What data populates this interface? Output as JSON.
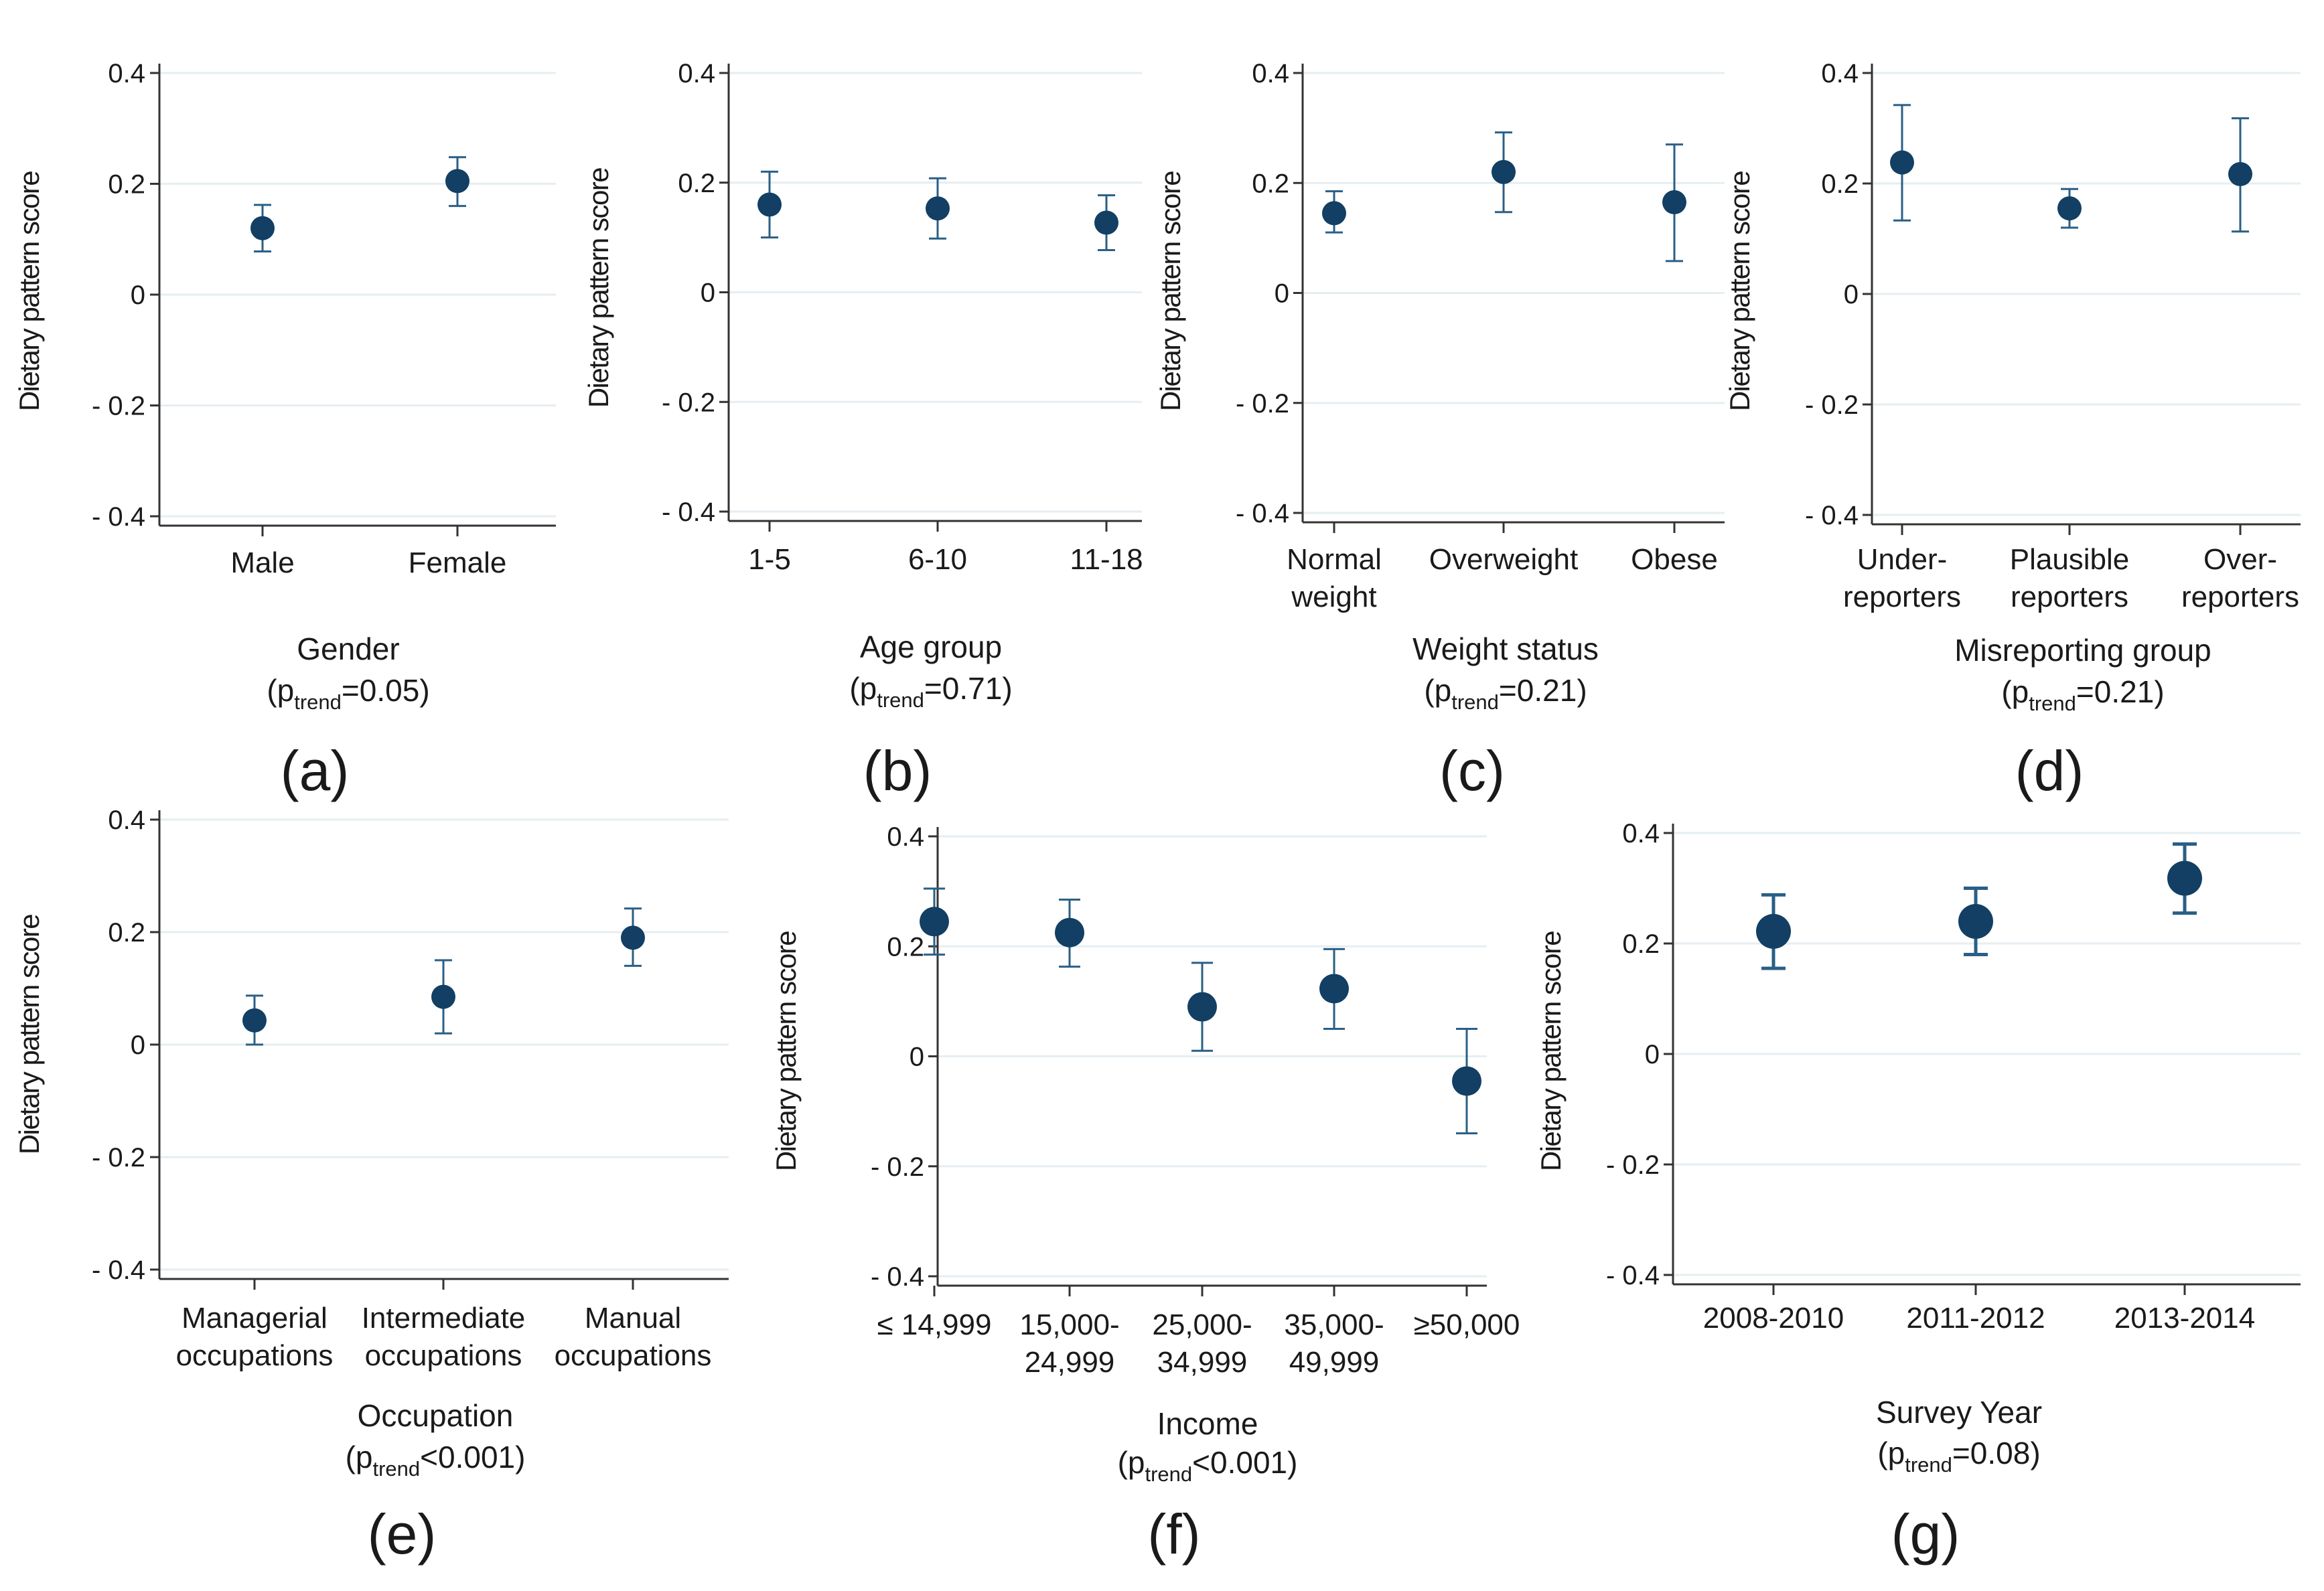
{
  "style": {
    "marker_color": "#123f63",
    "errorbar_color": "#2a5f86",
    "grid_color": "#e6eef2",
    "axis_color": "#333333"
  },
  "chart_data": [
    {
      "id": "a",
      "type": "scatter",
      "panel_label": "(a)",
      "ylabel": "Dietary pattern score",
      "xlabel": "Gender",
      "p_prefix": "(p",
      "p_sub": "trend",
      "p_value": "=0.05)",
      "yticks": [
        {
          "value": 0.4,
          "label": "0.4"
        },
        {
          "value": 0.2,
          "label": "0.2"
        },
        {
          "value": 0,
          "label": "0"
        },
        {
          "value": -0.2,
          "label": "- 0.2"
        },
        {
          "value": -0.4,
          "label": "- 0.4"
        }
      ],
      "ylim": [
        -0.42,
        0.42
      ],
      "categories": [
        [
          "Male"
        ],
        [
          "Female"
        ]
      ],
      "values": [
        0.12,
        0.205
      ],
      "ci_low": [
        0.078,
        0.16
      ],
      "ci_high": [
        0.162,
        0.248
      ]
    },
    {
      "id": "b",
      "type": "scatter",
      "panel_label": "(b)",
      "ylabel": "Dietary pattern score",
      "xlabel": "Age group",
      "p_prefix": "(p",
      "p_sub": "trend",
      "p_value": "=0.71)",
      "yticks": [
        {
          "value": 0.4,
          "label": "0.4"
        },
        {
          "value": 0.2,
          "label": "0.2"
        },
        {
          "value": 0,
          "label": "0"
        },
        {
          "value": -0.2,
          "label": "- 0.2"
        },
        {
          "value": -0.4,
          "label": "- 0.4"
        }
      ],
      "ylim": [
        -0.42,
        0.42
      ],
      "categories": [
        [
          "1-5"
        ],
        [
          "6-10"
        ],
        [
          "11-18"
        ]
      ],
      "values": [
        0.16,
        0.153,
        0.127
      ],
      "ci_low": [
        0.1,
        0.098,
        0.077
      ],
      "ci_high": [
        0.22,
        0.208,
        0.177
      ]
    },
    {
      "id": "c",
      "type": "scatter",
      "panel_label": "(c)",
      "ylabel": "Dietary pattern score",
      "xlabel": "Weight status",
      "p_prefix": "(p",
      "p_sub": "trend",
      "p_value": "=0.21)",
      "yticks": [
        {
          "value": 0.4,
          "label": "0.4"
        },
        {
          "value": 0.2,
          "label": "0.2"
        },
        {
          "value": 0,
          "label": "0"
        },
        {
          "value": -0.2,
          "label": "- 0.2"
        },
        {
          "value": -0.4,
          "label": "- 0.4"
        }
      ],
      "ylim": [
        -0.42,
        0.42
      ],
      "categories": [
        [
          "Normal",
          "weight"
        ],
        [
          "Overweight"
        ],
        [
          "Obese"
        ]
      ],
      "values": [
        0.145,
        0.22,
        0.165
      ],
      "ci_low": [
        0.11,
        0.147,
        0.058
      ],
      "ci_high": [
        0.185,
        0.292,
        0.27
      ]
    },
    {
      "id": "d",
      "type": "scatter",
      "panel_label": "(d)",
      "ylabel": "Dietary pattern score",
      "xlabel": "Misreporting group",
      "p_prefix": "(p",
      "p_sub": "trend",
      "p_value": "=0.21)",
      "yticks": [
        {
          "value": 0.4,
          "label": "0.4"
        },
        {
          "value": 0.2,
          "label": "0.2"
        },
        {
          "value": 0,
          "label": "0"
        },
        {
          "value": -0.2,
          "label": "- 0.2"
        },
        {
          "value": -0.4,
          "label": "- 0.4"
        }
      ],
      "ylim": [
        -0.42,
        0.42
      ],
      "categories": [
        [
          "Under-",
          "reporters"
        ],
        [
          "Plausible",
          "reporters"
        ],
        [
          "Over-",
          "reporters"
        ]
      ],
      "values": [
        0.238,
        0.155,
        0.217
      ],
      "ci_low": [
        0.133,
        0.12,
        0.113
      ],
      "ci_high": [
        0.342,
        0.19,
        0.318
      ]
    },
    {
      "id": "e",
      "type": "scatter",
      "panel_label": "(e)",
      "ylabel": "Dietary pattern score",
      "xlabel": "Occupation",
      "p_prefix": "(p",
      "p_sub": "trend",
      "p_value": "<0.001)",
      "yticks": [
        {
          "value": 0.4,
          "label": "0.4"
        },
        {
          "value": 0.2,
          "label": "0.2"
        },
        {
          "value": 0,
          "label": "0"
        },
        {
          "value": -0.2,
          "label": "- 0.2"
        },
        {
          "value": -0.4,
          "label": "- 0.4"
        }
      ],
      "ylim": [
        -0.42,
        0.42
      ],
      "categories": [
        [
          "Managerial",
          "occupations"
        ],
        [
          "Intermediate",
          "occupations"
        ],
        [
          "Manual",
          "occupations"
        ]
      ],
      "values": [
        0.043,
        0.085,
        0.19
      ],
      "ci_low": [
        0.0,
        0.02,
        0.14
      ],
      "ci_high": [
        0.087,
        0.15,
        0.242
      ]
    },
    {
      "id": "f",
      "type": "scatter",
      "panel_label": "(f)",
      "ylabel": "Dietary pattern score",
      "xlabel": "Income",
      "p_prefix": "(p",
      "p_sub": "trend",
      "p_value": "<0.001)",
      "yticks": [
        {
          "value": 0.4,
          "label": "0.4"
        },
        {
          "value": 0.2,
          "label": "0.2"
        },
        {
          "value": 0,
          "label": "0"
        },
        {
          "value": -0.2,
          "label": "- 0.2"
        },
        {
          "value": -0.4,
          "label": "- 0.4"
        }
      ],
      "ylim": [
        -0.42,
        0.42
      ],
      "categories": [
        [
          "≤ 14,999"
        ],
        [
          "15,000-",
          "24,999"
        ],
        [
          "25,000-",
          "34,999"
        ],
        [
          "35,000-",
          "49,999"
        ],
        [
          "≥50,000"
        ]
      ],
      "values": [
        0.245,
        0.225,
        0.09,
        0.123,
        -0.045
      ],
      "ci_low": [
        0.185,
        0.163,
        0.01,
        0.05,
        -0.14
      ],
      "ci_high": [
        0.305,
        0.285,
        0.17,
        0.195,
        0.05
      ]
    },
    {
      "id": "g",
      "type": "scatter",
      "panel_label": "(g)",
      "ylabel": "Dietary pattern score",
      "xlabel": "Survey Year",
      "p_prefix": "(p",
      "p_sub": "trend",
      "p_value": "=0.08)",
      "yticks": [
        {
          "value": 0.4,
          "label": "0.4"
        },
        {
          "value": 0.2,
          "label": "0.2"
        },
        {
          "value": 0,
          "label": "0"
        },
        {
          "value": -0.2,
          "label": "- 0.2"
        },
        {
          "value": -0.4,
          "label": "- 0.4"
        }
      ],
      "ylim": [
        -0.42,
        0.42
      ],
      "categories": [
        [
          "2008-2010"
        ],
        [
          "2011-2012"
        ],
        [
          "2013-2014"
        ]
      ],
      "values": [
        0.222,
        0.24,
        0.318
      ],
      "ci_low": [
        0.155,
        0.18,
        0.255
      ],
      "ci_high": [
        0.288,
        0.3,
        0.38
      ]
    }
  ]
}
